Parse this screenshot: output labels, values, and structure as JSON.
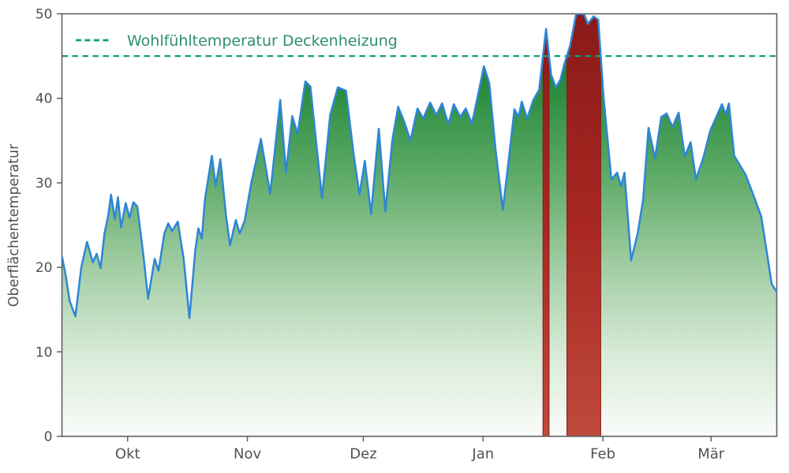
{
  "chart_data": {
    "type": "area",
    "title": "",
    "xlabel": "",
    "ylabel": "Oberflächentemperatur",
    "ylim": [
      0,
      50
    ],
    "x_domain": [
      0,
      185
    ],
    "grid": false,
    "legend_position": "upper-left",
    "y_ticks": [
      0,
      10,
      20,
      30,
      40,
      50
    ],
    "x_ticks": [
      {
        "day": 17,
        "label": "Okt"
      },
      {
        "day": 48,
        "label": "Nov"
      },
      {
        "day": 78,
        "label": "Dez"
      },
      {
        "day": 109,
        "label": "Jan"
      },
      {
        "day": 140,
        "label": "Feb"
      },
      {
        "day": 168,
        "label": "Mär"
      }
    ],
    "threshold": {
      "value": 45,
      "label": "Wohlfühltemperatur Deckenheizung"
    },
    "series": [
      {
        "name": "Oberflächentemperatur",
        "points": [
          [
            0,
            21.3
          ],
          [
            1,
            19.0
          ],
          [
            2,
            16.0
          ],
          [
            3.5,
            14.2
          ],
          [
            5,
            20.0
          ],
          [
            6.5,
            23.0
          ],
          [
            8,
            20.6
          ],
          [
            9,
            21.6
          ],
          [
            10,
            19.9
          ],
          [
            11,
            24.0
          ],
          [
            12,
            26.2
          ],
          [
            12.7,
            28.6
          ],
          [
            13.7,
            25.7
          ],
          [
            14.5,
            28.3
          ],
          [
            15.3,
            24.7
          ],
          [
            16.5,
            27.6
          ],
          [
            17.5,
            25.9
          ],
          [
            18.5,
            27.7
          ],
          [
            19.5,
            27.2
          ],
          [
            21,
            21.8
          ],
          [
            22.3,
            16.3
          ],
          [
            24,
            21.0
          ],
          [
            25,
            19.6
          ],
          [
            26.5,
            24.0
          ],
          [
            27.5,
            25.2
          ],
          [
            28.5,
            24.3
          ],
          [
            30,
            25.4
          ],
          [
            31.5,
            21.0
          ],
          [
            33,
            14.0
          ],
          [
            34.5,
            22.0
          ],
          [
            35.3,
            24.6
          ],
          [
            36.2,
            23.4
          ],
          [
            37,
            28.0
          ],
          [
            38.8,
            33.2
          ],
          [
            39.8,
            29.6
          ],
          [
            41,
            32.8
          ],
          [
            42.5,
            26.0
          ],
          [
            43.5,
            22.6
          ],
          [
            45,
            25.6
          ],
          [
            46,
            24.0
          ],
          [
            47.3,
            25.5
          ],
          [
            49,
            30.0
          ],
          [
            51.5,
            35.2
          ],
          [
            53.9,
            28.7
          ],
          [
            56.5,
            39.8
          ],
          [
            58,
            31.2
          ],
          [
            59.6,
            37.9
          ],
          [
            61,
            35.8
          ],
          [
            63,
            42.0
          ],
          [
            64.3,
            41.4
          ],
          [
            67.3,
            28.2
          ],
          [
            69.4,
            38.0
          ],
          [
            71.4,
            41.3
          ],
          [
            73.5,
            40.9
          ],
          [
            75.5,
            33.4
          ],
          [
            77,
            28.6
          ],
          [
            78.4,
            32.6
          ],
          [
            80,
            26.3
          ],
          [
            82,
            36.4
          ],
          [
            83.7,
            26.6
          ],
          [
            85.5,
            35.0
          ],
          [
            87,
            39.0
          ],
          [
            88.6,
            37.2
          ],
          [
            90.2,
            35.0
          ],
          [
            92,
            38.8
          ],
          [
            93.5,
            37.6
          ],
          [
            95.3,
            39.5
          ],
          [
            96.9,
            38.0
          ],
          [
            98.4,
            39.4
          ],
          [
            100,
            36.9
          ],
          [
            101.4,
            39.3
          ],
          [
            103.1,
            37.8
          ],
          [
            104.5,
            38.8
          ],
          [
            106.1,
            37.0
          ],
          [
            107.6,
            40.2
          ],
          [
            109.2,
            43.8
          ],
          [
            110.6,
            41.8
          ],
          [
            112.2,
            34.0
          ],
          [
            114.1,
            26.8
          ],
          [
            115.7,
            33.0
          ],
          [
            117.1,
            38.7
          ],
          [
            118.2,
            37.8
          ],
          [
            119,
            39.6
          ],
          [
            120.4,
            37.6
          ],
          [
            122,
            39.8
          ],
          [
            123.5,
            41.0
          ],
          [
            125.3,
            48.2
          ],
          [
            126.6,
            42.8
          ],
          [
            127.8,
            41.3
          ],
          [
            129,
            42.2
          ],
          [
            130,
            44.0
          ],
          [
            131.5,
            46.2
          ],
          [
            133.1,
            50.5
          ],
          [
            135.1,
            50.4
          ],
          [
            136.1,
            48.8
          ],
          [
            137.6,
            49.7
          ],
          [
            138.8,
            49.3
          ],
          [
            140.2,
            40.0
          ],
          [
            142.2,
            30.4
          ],
          [
            143.7,
            31.2
          ],
          [
            144.7,
            29.6
          ],
          [
            145.6,
            31.2
          ],
          [
            147.3,
            20.8
          ],
          [
            149,
            24.0
          ],
          [
            150.4,
            28.0
          ],
          [
            151.8,
            36.5
          ],
          [
            153.5,
            32.9
          ],
          [
            155.1,
            37.8
          ],
          [
            156.5,
            38.2
          ],
          [
            158,
            36.6
          ],
          [
            159.6,
            38.3
          ],
          [
            161.2,
            33.1
          ],
          [
            162.7,
            34.8
          ],
          [
            164.1,
            30.4
          ],
          [
            166,
            33.0
          ],
          [
            167.8,
            36.2
          ],
          [
            170.8,
            39.3
          ],
          [
            171.8,
            38.1
          ],
          [
            172.6,
            39.4
          ],
          [
            174,
            33.2
          ],
          [
            176.9,
            31.0
          ],
          [
            179,
            28.5
          ],
          [
            181,
            26.0
          ],
          [
            183.7,
            18.0
          ],
          [
            185,
            17.1
          ]
        ]
      }
    ],
    "colors": {
      "line": "#2e86d6",
      "area_gradient": [
        "#0b6f26",
        "#2f8f41",
        "#63ad6c",
        "#a2cda4",
        "#d6ead6",
        "#fafcfa"
      ],
      "over_gradient": [
        "#8a1a18",
        "#a82722",
        "#bf4a3c"
      ],
      "threshold": "#0fa077",
      "legend_text": "#2e8f72",
      "axis": "#4d5358",
      "frame": "#5b6167"
    }
  }
}
